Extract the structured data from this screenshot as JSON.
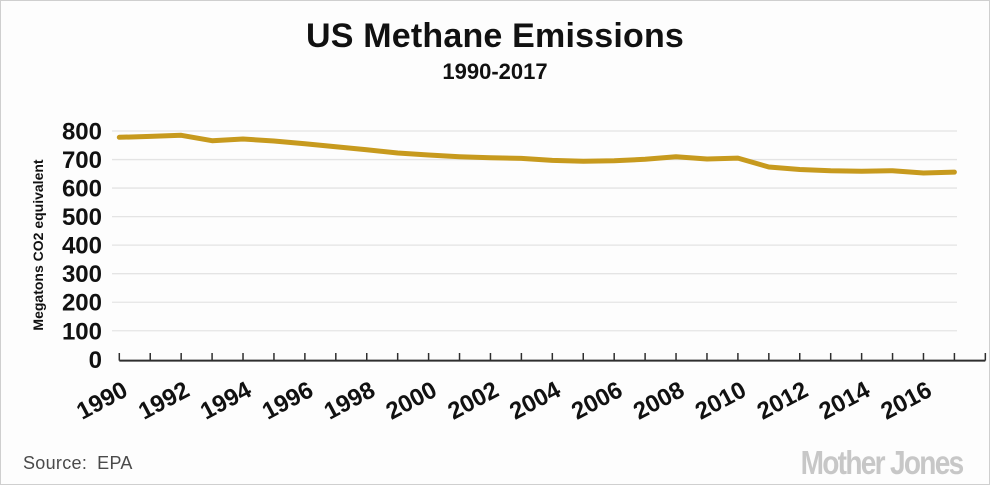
{
  "header": {
    "title": "US Methane Emissions",
    "subtitle": "1990-2017"
  },
  "footer": {
    "source_label": "Source:",
    "source_value": "EPA",
    "brand": "Mother Jones"
  },
  "chart_data": {
    "type": "line",
    "title": "US Methane Emissions",
    "subtitle": "1990-2017",
    "xlabel": "",
    "ylabel": "Megatons CO2 equivalent",
    "source": "EPA",
    "x": [
      1990,
      1991,
      1992,
      1993,
      1994,
      1995,
      1996,
      1997,
      1998,
      1999,
      2000,
      2001,
      2002,
      2003,
      2004,
      2005,
      2006,
      2007,
      2008,
      2009,
      2010,
      2011,
      2012,
      2013,
      2014,
      2015,
      2016,
      2017
    ],
    "series": [
      {
        "name": "US methane emissions",
        "values": [
          778,
          781,
          785,
          766,
          772,
          765,
          755,
          745,
          734,
          723,
          716,
          710,
          706,
          704,
          697,
          694,
          696,
          701,
          710,
          702,
          705,
          674,
          665,
          661,
          659,
          661,
          653,
          656
        ]
      }
    ],
    "ylim": [
      0,
      800
    ],
    "y_ticks": [
      0,
      100,
      200,
      300,
      400,
      500,
      600,
      700,
      800
    ],
    "x_axis_range": [
      1990,
      2018
    ],
    "x_tick_every_years": 1,
    "x_tick_labels": [
      "1990",
      "1992",
      "1994",
      "1996",
      "1998",
      "2000",
      "2002",
      "2004",
      "2006",
      "2008",
      "2010",
      "2012",
      "2014",
      "2016"
    ],
    "grid": true,
    "legend": false,
    "line_color": "#C79A1E",
    "grid_color": "#e4e4e4",
    "axis_color": "#2e2e2e",
    "text_color": "#111111"
  }
}
